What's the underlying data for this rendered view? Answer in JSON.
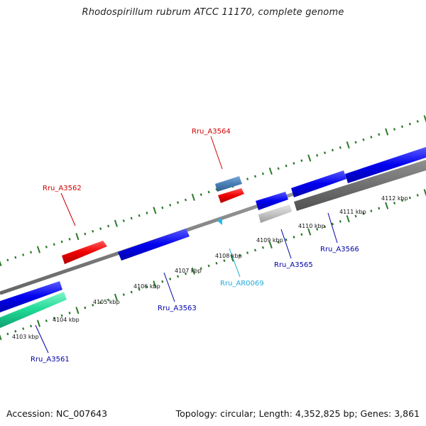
{
  "title": "Rhodospirillum rubrum ATCC 11170, complete genome",
  "footer": {
    "accession": "Accession: NC_007643",
    "summary": "Topology: circular; Length: 4,352,825 bp; Genes: 3,861"
  },
  "colors": {
    "backbone": "#8a8a8a",
    "tick": "#2a7a2a",
    "forward_cds": "#0000ee",
    "reverse_cds": "#ee0000",
    "rna": "#00ccee",
    "pseudogene": "#9c9c9c",
    "other": "#4a7fb5",
    "hypothetical": "#1ed996"
  },
  "kbp_labels": [
    "4103 kbp",
    "4104 kbp",
    "4105 kbp",
    "4106 kbp",
    "4107 kbp",
    "4108 kbp",
    "4109 kbp",
    "4110 kbp",
    "4111 kbp",
    "4112 kbp"
  ],
  "genes": [
    {
      "name": "Rru_A3561",
      "color": "#0000aa"
    },
    {
      "name": "Rru_A3562",
      "color": "#cc0000"
    },
    {
      "name": "Rru_A3563",
      "color": "#0000aa"
    },
    {
      "name": "Rru_A3564",
      "color": "#cc0000"
    },
    {
      "name": "Rru_AR0069",
      "color": "#22aadd"
    },
    {
      "name": "Rru_A3565",
      "color": "#0000aa"
    },
    {
      "name": "Rru_A3566",
      "color": "#0000aa"
    }
  ]
}
